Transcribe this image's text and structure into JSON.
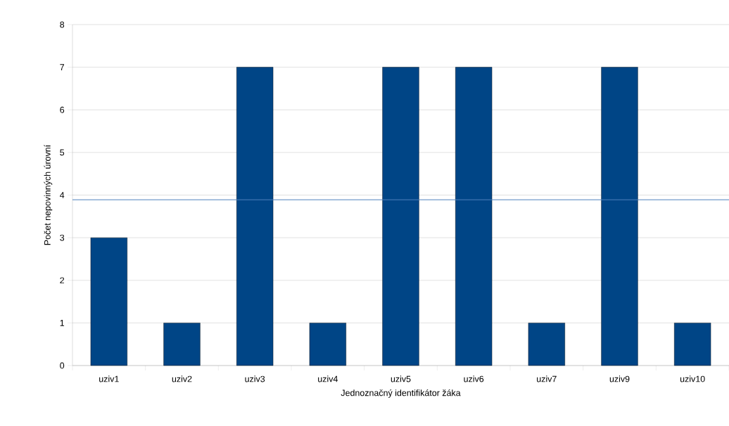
{
  "chart_data": {
    "type": "bar",
    "xlabel": "Jednoznačný identifikátor žáka",
    "ylabel": "Počet nepovinných úrovní",
    "categories": [
      "uziv1",
      "uziv2",
      "uziv3",
      "uziv4",
      "uziv5",
      "uziv6",
      "uziv7",
      "uziv9",
      "uziv10"
    ],
    "values": [
      3,
      1,
      7,
      1,
      7,
      7,
      1,
      7,
      1
    ],
    "color": "#004586",
    "ylim": [
      0,
      8
    ],
    "yticks": [
      0,
      1,
      2,
      3,
      4,
      5,
      6,
      7,
      8
    ],
    "grid": "y",
    "ref_lines": [
      {
        "axis": "y",
        "value": 3.89,
        "color": "#4f81bd"
      }
    ]
  }
}
